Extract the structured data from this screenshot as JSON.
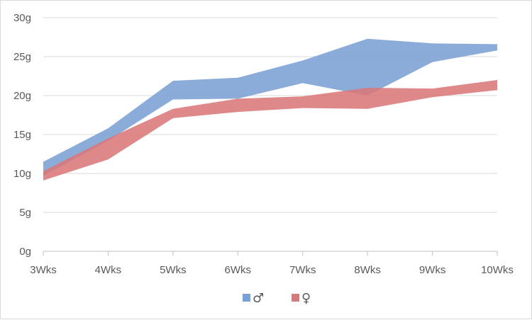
{
  "chart_data": {
    "type": "area",
    "title": "",
    "xlabel": "",
    "ylabel": "",
    "categories": [
      "3Wks",
      "4Wks",
      "5Wks",
      "6Wks",
      "7Wks",
      "8Wks",
      "9Wks",
      "10Wks"
    ],
    "y_ticks": [
      "0g",
      "5g",
      "10g",
      "15g",
      "20g",
      "25g",
      "30g"
    ],
    "ylim": [
      0,
      30
    ],
    "grid": true,
    "legend_position": "bottom",
    "series": [
      {
        "name": "♂",
        "color": "#7ba1d4",
        "upper": [
          11.5,
          15.8,
          21.9,
          22.3,
          24.5,
          27.3,
          26.7,
          26.6
        ],
        "lower": [
          9.7,
          14.2,
          19.5,
          19.6,
          21.6,
          20.0,
          24.3,
          25.8
        ]
      },
      {
        "name": "♀",
        "color": "#d9787a",
        "upper": [
          10.3,
          14.5,
          18.3,
          19.6,
          19.9,
          21.0,
          20.9,
          22.0
        ],
        "lower": [
          9.1,
          11.8,
          17.1,
          17.9,
          18.4,
          18.3,
          19.8,
          20.7
        ]
      }
    ]
  }
}
